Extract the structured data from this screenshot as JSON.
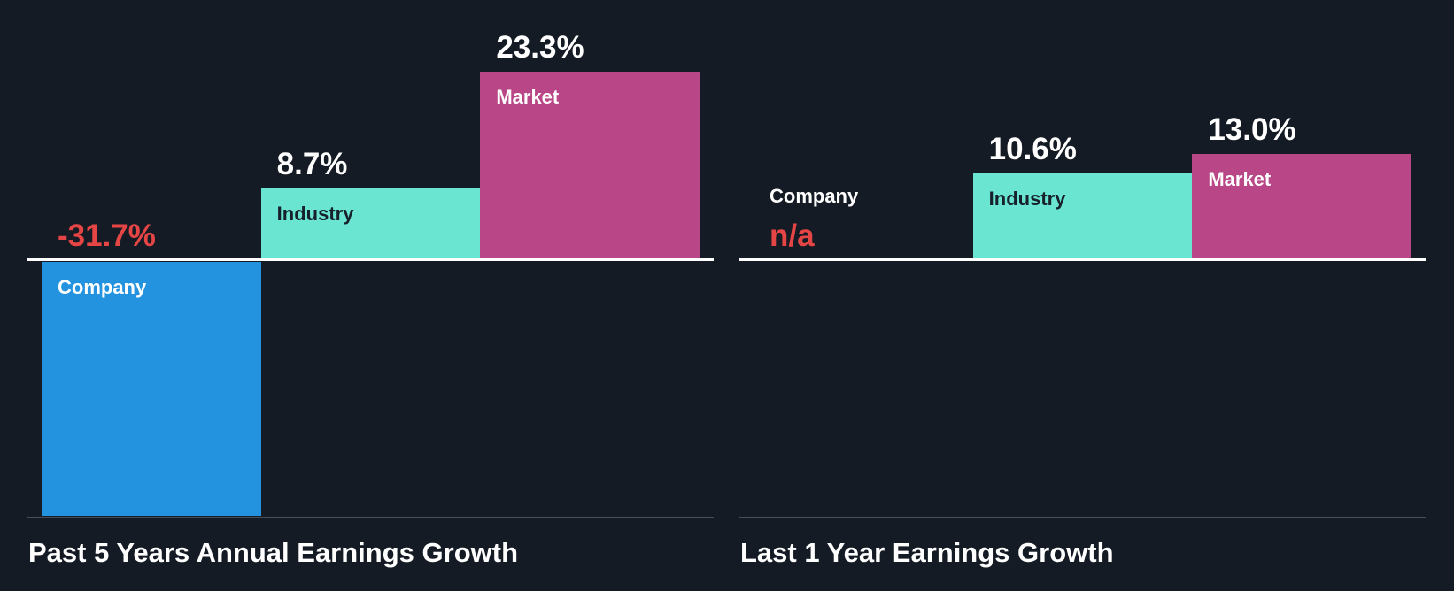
{
  "colors": {
    "background": "#151B24",
    "axis_line": "#FFFFFF",
    "bottom_divider": "#464D57",
    "company_bar": "#2493DF",
    "industry_bar": "#69E5D2",
    "market_bar": "#B94787",
    "negative_value": "#E64545",
    "value_label": "#FFFFFF",
    "label_dark": "#17212B",
    "label_light": "#FFFFFF",
    "title_text": "#FFFFFF"
  },
  "chart_data": [
    {
      "type": "bar",
      "title": "Past 5 Years Annual Earnings Growth",
      "categories": [
        "Company",
        "Industry",
        "Market"
      ],
      "values": [
        -31.7,
        8.7,
        23.3
      ],
      "value_labels": [
        "-31.7%",
        "8.7%",
        "23.3%"
      ],
      "bar_colors": [
        "#2493DF",
        "#69E5D2",
        "#B94787"
      ],
      "label_colors": [
        "#FFFFFF",
        "#17212B",
        "#FFFFFF"
      ],
      "unit": "%",
      "ylim": [
        -31.7,
        23.3
      ],
      "baseline": 0,
      "grid": false,
      "legend": "none"
    },
    {
      "type": "bar",
      "title": "Last 1 Year Earnings Growth",
      "categories": [
        "Company",
        "Industry",
        "Market"
      ],
      "values": [
        null,
        10.6,
        13.0
      ],
      "value_labels": [
        "n/a",
        "10.6%",
        "13.0%"
      ],
      "bar_colors": [
        "#2493DF",
        "#69E5D2",
        "#B94787"
      ],
      "label_colors": [
        "#FFFFFF",
        "#17212B",
        "#FFFFFF"
      ],
      "unit": "%",
      "ylim": [
        0,
        13.0
      ],
      "baseline": 0,
      "grid": false,
      "legend": "none"
    }
  ]
}
